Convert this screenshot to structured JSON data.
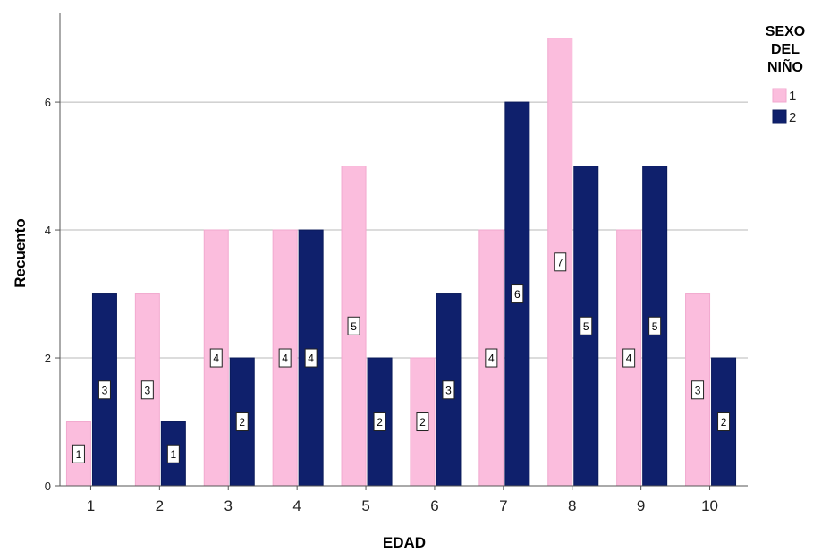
{
  "chart_data": {
    "type": "bar",
    "xlabel": "EDAD",
    "ylabel": "Recuento",
    "categories": [
      "1",
      "2",
      "3",
      "4",
      "5",
      "6",
      "7",
      "8",
      "9",
      "10"
    ],
    "series": [
      {
        "name": "1",
        "color": "#FBBDDD",
        "values": [
          1,
          3,
          4,
          4,
          5,
          2,
          4,
          7,
          4,
          3
        ]
      },
      {
        "name": "2",
        "color": "#0F206C",
        "values": [
          3,
          1,
          2,
          4,
          2,
          3,
          6,
          5,
          5,
          2
        ]
      }
    ],
    "ylim": [
      0,
      7.4
    ],
    "yticks": [
      0,
      2,
      4,
      6
    ],
    "grid": true,
    "legend": {
      "title_lines": [
        "SEXO",
        "DEL",
        "NIÑO"
      ],
      "position": "top-right"
    },
    "data_labels": true
  }
}
